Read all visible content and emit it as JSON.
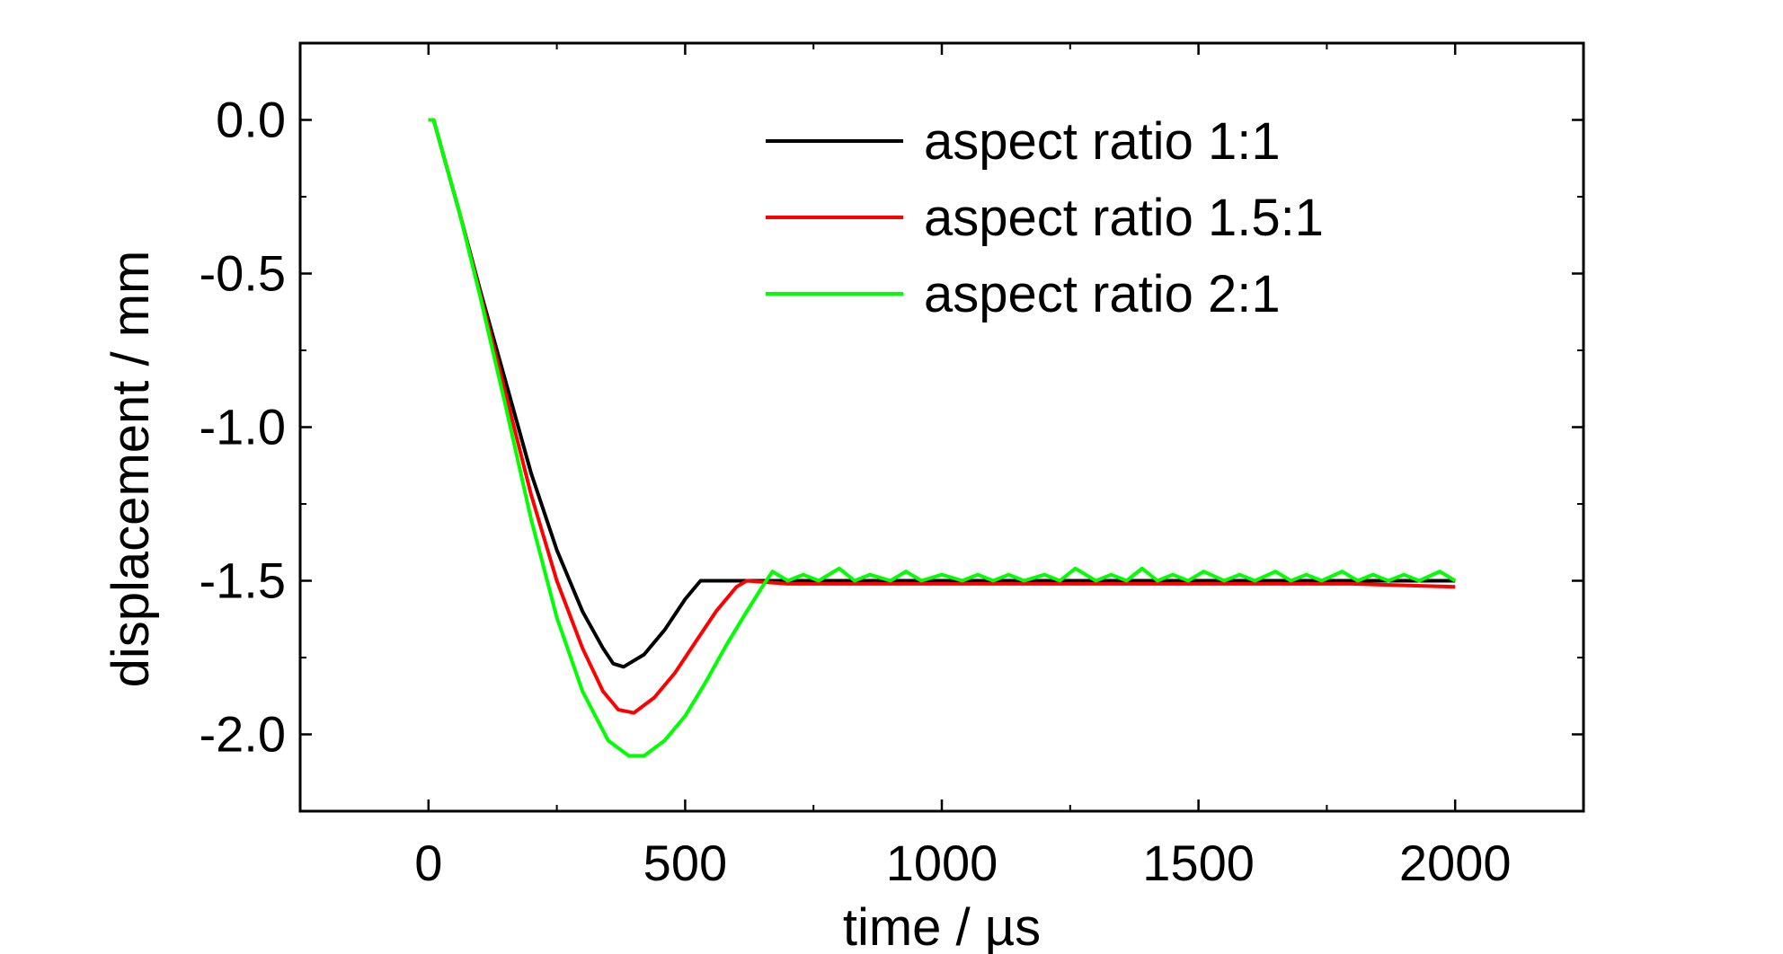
{
  "chart_data": {
    "type": "line",
    "title": "",
    "xlabel": "time / µs",
    "ylabel": "displacement / mm",
    "xlim": [
      -250,
      2250
    ],
    "ylim": [
      -2.25,
      0.25
    ],
    "x_ticks": [
      0,
      500,
      1000,
      1500,
      2000
    ],
    "y_ticks": [
      0.0,
      -0.5,
      -1.0,
      -1.5,
      -2.0
    ],
    "x_tick_labels": [
      "0",
      "500",
      "1000",
      "1500",
      "2000"
    ],
    "y_tick_labels": [
      "0.0",
      "-0.5",
      "-1.0",
      "-1.5",
      "-2.0"
    ],
    "grid": false,
    "legend_position": "top-right",
    "series": [
      {
        "name": "aspect ratio 1:1",
        "color": "#000000",
        "points": [
          [
            0,
            0.0
          ],
          [
            10,
            0.0
          ],
          [
            30,
            -0.12
          ],
          [
            60,
            -0.3
          ],
          [
            100,
            -0.55
          ],
          [
            150,
            -0.85
          ],
          [
            200,
            -1.15
          ],
          [
            250,
            -1.4
          ],
          [
            300,
            -1.6
          ],
          [
            340,
            -1.72
          ],
          [
            360,
            -1.77
          ],
          [
            380,
            -1.78
          ],
          [
            420,
            -1.74
          ],
          [
            460,
            -1.66
          ],
          [
            500,
            -1.56
          ],
          [
            530,
            -1.5
          ],
          [
            600,
            -1.5
          ],
          [
            800,
            -1.5
          ],
          [
            1000,
            -1.5
          ],
          [
            1200,
            -1.5
          ],
          [
            1400,
            -1.5
          ],
          [
            1600,
            -1.5
          ],
          [
            1800,
            -1.5
          ],
          [
            2000,
            -1.5
          ]
        ]
      },
      {
        "name": "aspect ratio 1.5:1",
        "color": "#ff0000",
        "points": [
          [
            0,
            0.0
          ],
          [
            10,
            0.0
          ],
          [
            30,
            -0.12
          ],
          [
            60,
            -0.3
          ],
          [
            100,
            -0.56
          ],
          [
            150,
            -0.89
          ],
          [
            200,
            -1.22
          ],
          [
            250,
            -1.5
          ],
          [
            300,
            -1.72
          ],
          [
            340,
            -1.86
          ],
          [
            370,
            -1.92
          ],
          [
            400,
            -1.93
          ],
          [
            440,
            -1.88
          ],
          [
            480,
            -1.8
          ],
          [
            520,
            -1.7
          ],
          [
            560,
            -1.6
          ],
          [
            600,
            -1.52
          ],
          [
            620,
            -1.5
          ],
          [
            700,
            -1.51
          ],
          [
            800,
            -1.51
          ],
          [
            1000,
            -1.51
          ],
          [
            1200,
            -1.51
          ],
          [
            1400,
            -1.51
          ],
          [
            1600,
            -1.51
          ],
          [
            1800,
            -1.51
          ],
          [
            2000,
            -1.52
          ]
        ]
      },
      {
        "name": "aspect ratio 2:1",
        "color": "#00ff00",
        "points": [
          [
            0,
            0.0
          ],
          [
            10,
            0.0
          ],
          [
            30,
            -0.12
          ],
          [
            60,
            -0.3
          ],
          [
            100,
            -0.57
          ],
          [
            150,
            -0.93
          ],
          [
            200,
            -1.3
          ],
          [
            250,
            -1.62
          ],
          [
            300,
            -1.86
          ],
          [
            350,
            -2.02
          ],
          [
            390,
            -2.07
          ],
          [
            420,
            -2.07
          ],
          [
            460,
            -2.02
          ],
          [
            500,
            -1.94
          ],
          [
            540,
            -1.83
          ],
          [
            580,
            -1.71
          ],
          [
            620,
            -1.6
          ],
          [
            650,
            -1.52
          ],
          [
            670,
            -1.47
          ],
          [
            700,
            -1.5
          ],
          [
            730,
            -1.48
          ],
          [
            760,
            -1.5
          ],
          [
            800,
            -1.46
          ],
          [
            830,
            -1.5
          ],
          [
            860,
            -1.48
          ],
          [
            900,
            -1.5
          ],
          [
            930,
            -1.47
          ],
          [
            960,
            -1.5
          ],
          [
            1000,
            -1.48
          ],
          [
            1040,
            -1.5
          ],
          [
            1070,
            -1.48
          ],
          [
            1100,
            -1.5
          ],
          [
            1130,
            -1.48
          ],
          [
            1160,
            -1.5
          ],
          [
            1200,
            -1.48
          ],
          [
            1230,
            -1.5
          ],
          [
            1260,
            -1.46
          ],
          [
            1300,
            -1.5
          ],
          [
            1330,
            -1.48
          ],
          [
            1360,
            -1.5
          ],
          [
            1390,
            -1.46
          ],
          [
            1420,
            -1.5
          ],
          [
            1450,
            -1.48
          ],
          [
            1480,
            -1.5
          ],
          [
            1510,
            -1.47
          ],
          [
            1550,
            -1.5
          ],
          [
            1580,
            -1.48
          ],
          [
            1610,
            -1.5
          ],
          [
            1650,
            -1.47
          ],
          [
            1680,
            -1.5
          ],
          [
            1710,
            -1.48
          ],
          [
            1740,
            -1.5
          ],
          [
            1780,
            -1.47
          ],
          [
            1810,
            -1.5
          ],
          [
            1840,
            -1.48
          ],
          [
            1870,
            -1.5
          ],
          [
            1900,
            -1.48
          ],
          [
            1930,
            -1.5
          ],
          [
            1970,
            -1.47
          ],
          [
            2000,
            -1.5
          ]
        ]
      }
    ]
  }
}
